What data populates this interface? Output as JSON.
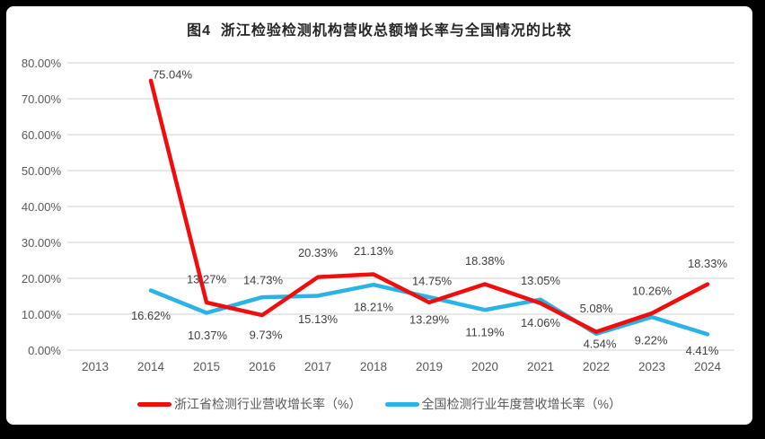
{
  "title": "图4  浙江检验检测机构营收总额增长率与全国情况的比较",
  "chart_data": {
    "type": "line",
    "title": "图4  浙江检验检测机构营收总额增长率与全国情况的比较",
    "categories": [
      "2013",
      "2014",
      "2015",
      "2016",
      "2017",
      "2018",
      "2019",
      "2020",
      "2021",
      "2022",
      "2023",
      "2024"
    ],
    "y_ticks": [
      "0.00%",
      "10.00%",
      "20.00%",
      "30.00%",
      "40.00%",
      "50.00%",
      "60.00%",
      "70.00%",
      "80.00%"
    ],
    "ylim": [
      0,
      80
    ],
    "grid": true,
    "legend_position": "bottom",
    "xlabel": "",
    "ylabel": "",
    "series": [
      {
        "name": "浙江省检测行业营收增长率（%）",
        "color": "#f20d0d",
        "years": [
          2014,
          2015,
          2016,
          2017,
          2018,
          2019,
          2020,
          2021,
          2022,
          2023,
          2024
        ],
        "values": [
          75.04,
          13.27,
          9.73,
          20.33,
          21.13,
          13.29,
          18.38,
          13.05,
          5.08,
          10.26,
          18.33
        ],
        "point_labels": [
          "75.04%",
          "13.27%",
          "9.73%",
          "20.33%",
          "21.13%",
          "13.29%",
          "18.38%",
          "13.05%",
          "5.08%",
          "10.26%",
          "18.33%"
        ],
        "label_offsets": [
          [
            24,
            -6
          ],
          [
            0,
            -25
          ],
          [
            4,
            23
          ],
          [
            0,
            -26
          ],
          [
            0,
            -25
          ],
          [
            0,
            20
          ],
          [
            0,
            -25
          ],
          [
            0,
            -24
          ],
          [
            0,
            -25
          ],
          [
            0,
            -24
          ],
          [
            0,
            -22
          ]
        ]
      },
      {
        "name": "全国检测行业年度营收增长率（%）",
        "color": "#2ab3e6",
        "years": [
          2014,
          2015,
          2016,
          2017,
          2018,
          2019,
          2020,
          2021,
          2022,
          2023,
          2024
        ],
        "values": [
          16.62,
          10.37,
          14.73,
          15.13,
          18.21,
          14.75,
          11.19,
          14.06,
          4.54,
          9.22,
          4.41
        ],
        "point_labels": [
          "16.62%",
          "10.37%",
          "14.73%",
          "15.13%",
          "18.21%",
          "14.75%",
          "11.19%",
          "14.06%",
          "4.54%",
          "9.22%",
          "4.41%"
        ],
        "label_offsets": [
          [
            0,
            29
          ],
          [
            1,
            26
          ],
          [
            1,
            -18
          ],
          [
            0,
            27
          ],
          [
            0,
            26
          ],
          [
            3,
            -17
          ],
          [
            0,
            26
          ],
          [
            0,
            27
          ],
          [
            4,
            12
          ],
          [
            -1,
            27
          ],
          [
            -6,
            19
          ]
        ]
      }
    ]
  },
  "colors": {
    "background": "#000000",
    "card": "#ffffff",
    "gridline": "#e0e0e0",
    "axis_text": "#595959",
    "data_label_text": "#3f3f3f",
    "series_red": "#f20d0d",
    "series_blue": "#2ab3e6"
  }
}
